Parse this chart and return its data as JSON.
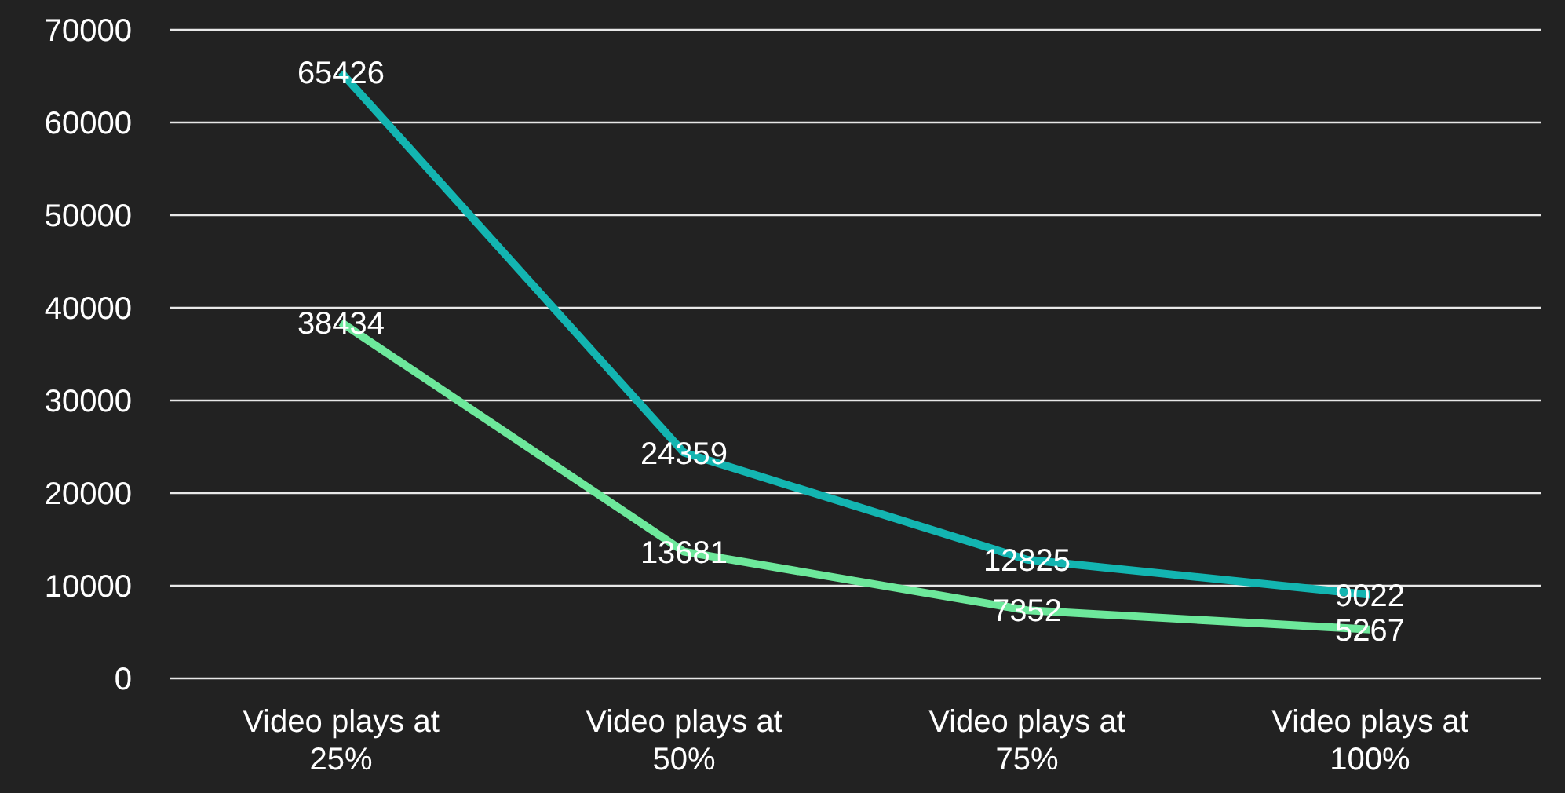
{
  "chart_data": {
    "type": "line",
    "categories": [
      "Video plays at 25%",
      "Video plays at 50%",
      "Video plays at 75%",
      "Video plays at 100%"
    ],
    "series": [
      {
        "color": "#13b5b1",
        "values": [
          65426,
          24359,
          12825,
          9022
        ]
      },
      {
        "color": "#6de89b",
        "values": [
          38434,
          13681,
          7352,
          5267
        ]
      }
    ],
    "ylim": [
      0,
      70000
    ],
    "yticks": [
      0,
      10000,
      20000,
      30000,
      40000,
      50000,
      60000,
      70000
    ],
    "grid": "y",
    "legend": false,
    "marker": "none",
    "line_style": "solid",
    "data_labels": true
  }
}
